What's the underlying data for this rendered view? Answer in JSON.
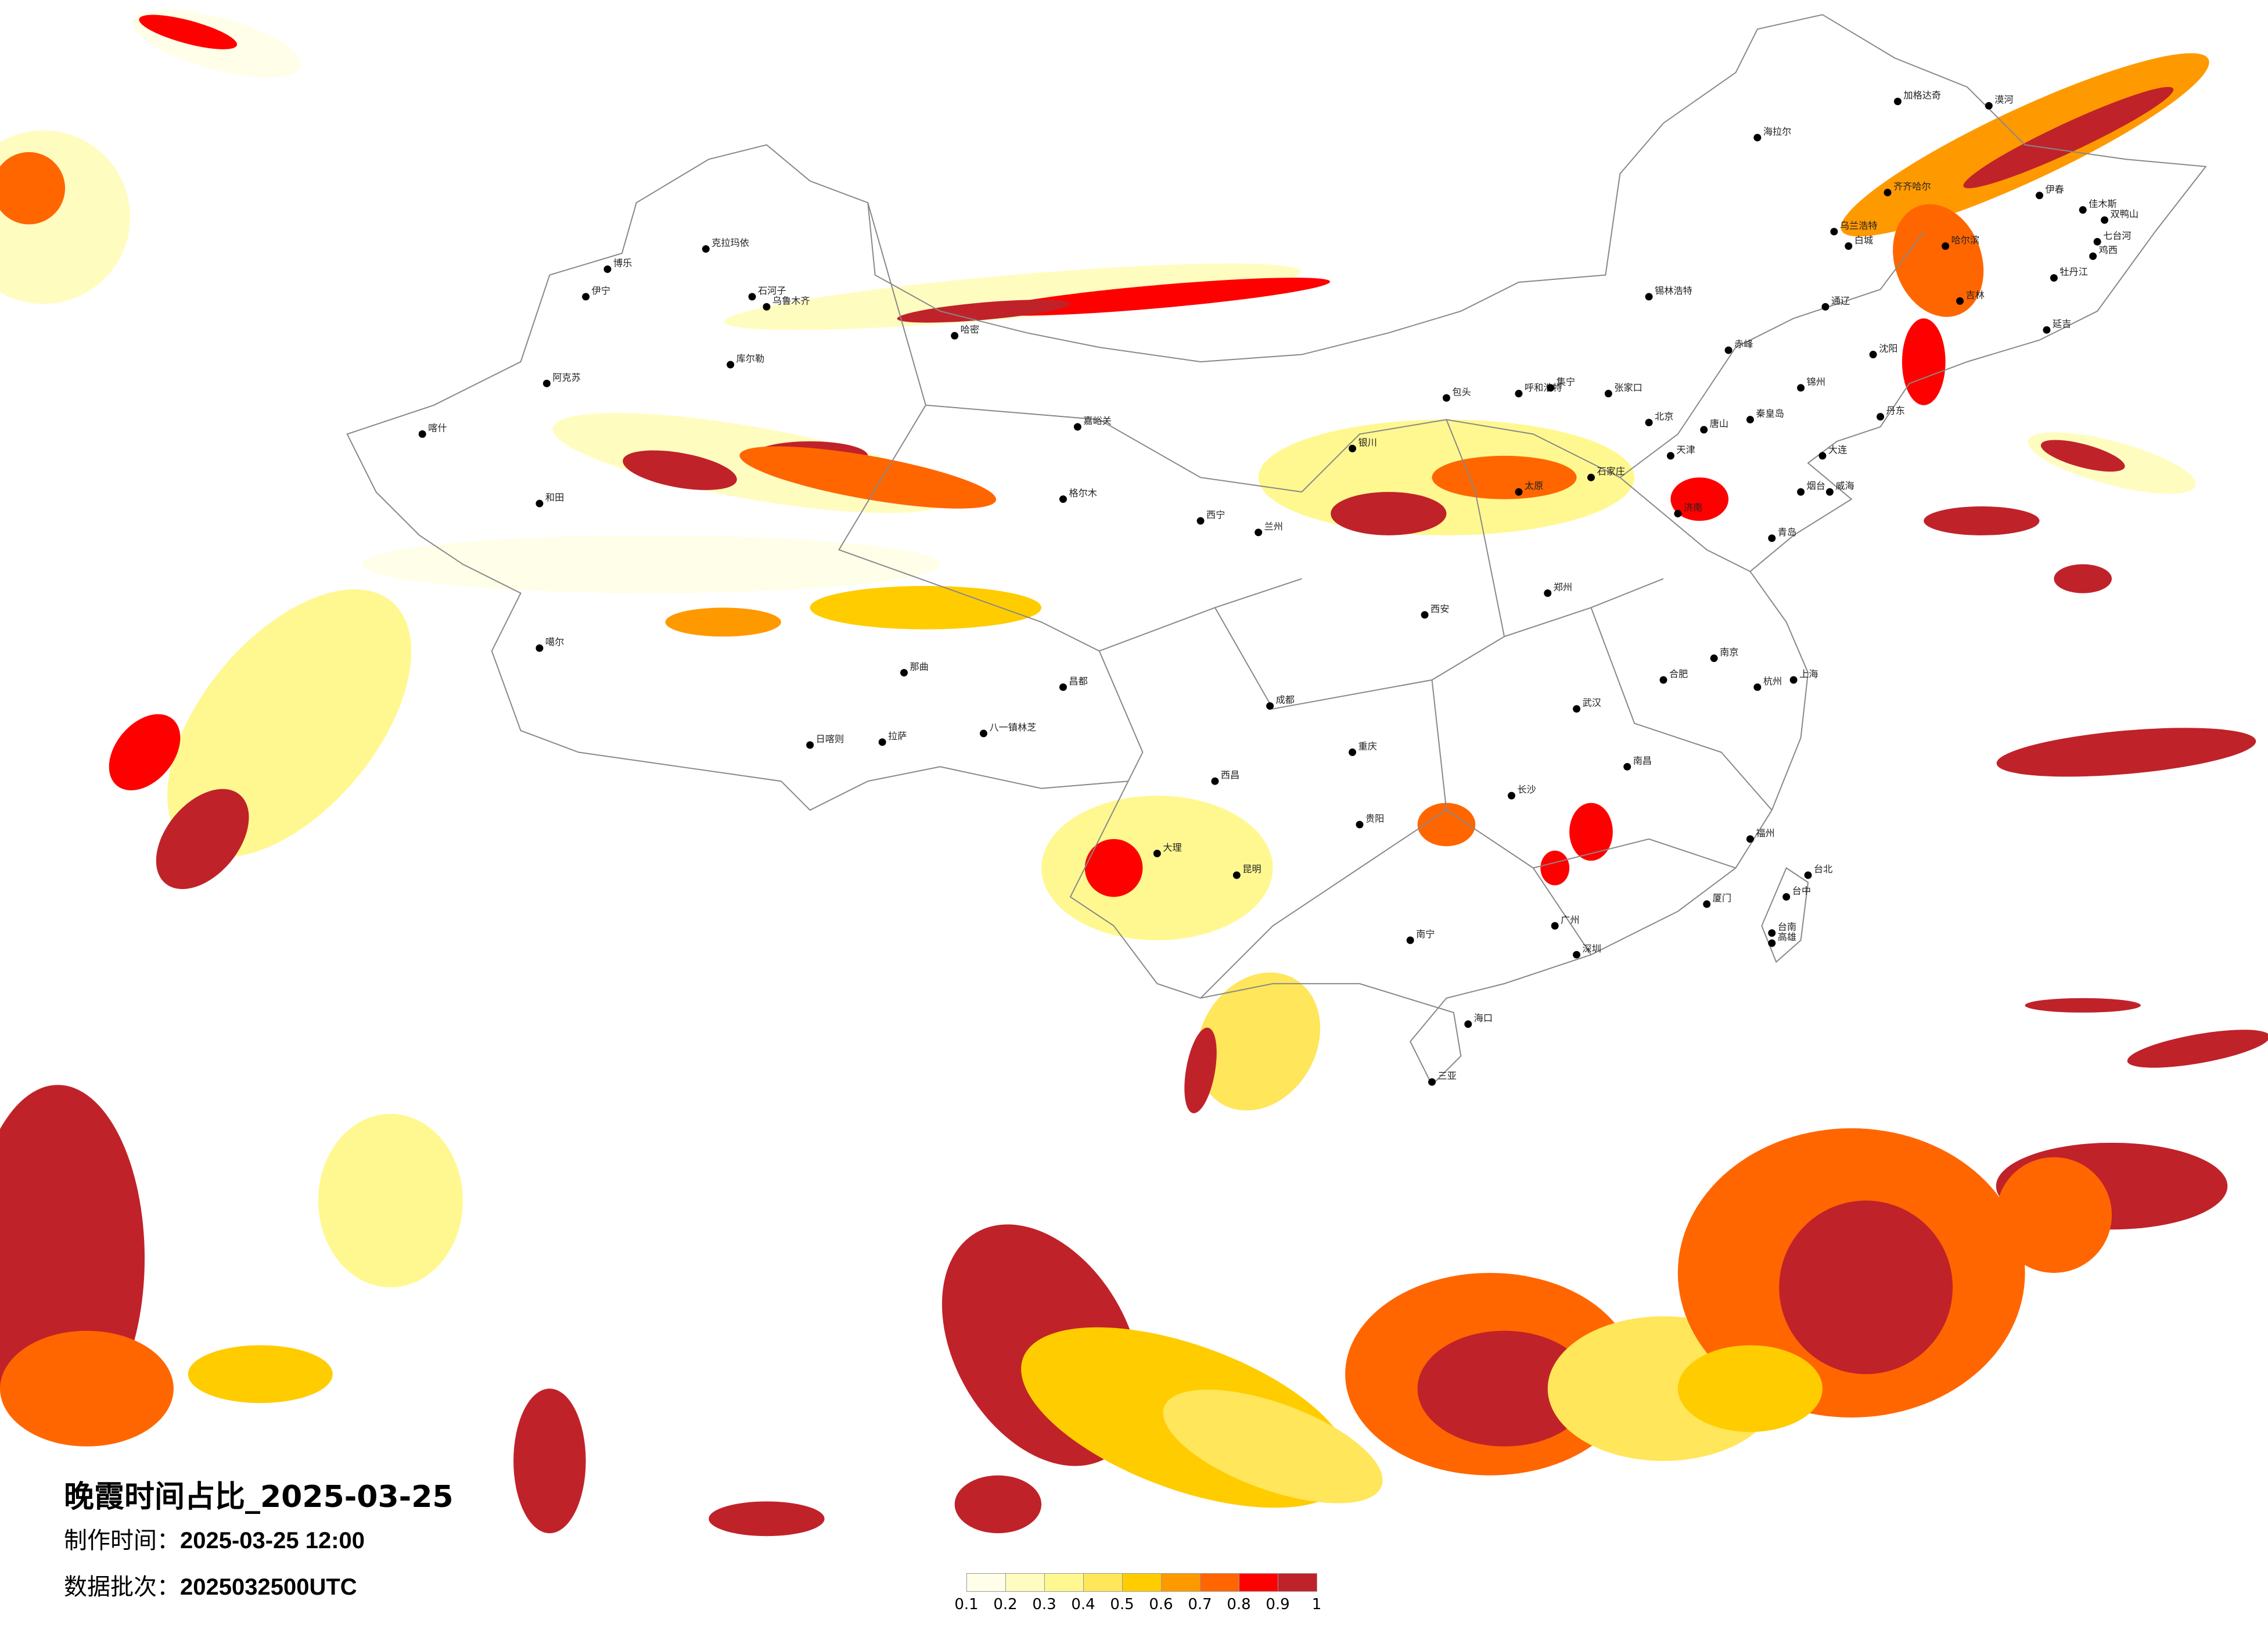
{
  "title": "晚霞时间占比_2025-03-25",
  "production_time": {
    "label": "制作时间：",
    "value": "2025-03-25 12:00"
  },
  "data_batch": {
    "label": "数据批次：",
    "value": "2025032500UTC"
  },
  "legend": {
    "ticks": [
      "0.1",
      "0.2",
      "0.3",
      "0.4",
      "0.5",
      "0.6",
      "0.7",
      "0.8",
      "0.9",
      "1"
    ],
    "colors": [
      "#fffee8",
      "#fffcc0",
      "#fff890",
      "#ffe65a",
      "#ffcc00",
      "#ff9900",
      "#ff6600",
      "#ff0000",
      "#c0222a"
    ]
  },
  "colors": {
    "border": "#888888",
    "city_dot": "#000000"
  },
  "cities": [
    "漠河",
    "加格达奇",
    "海拉尔",
    "齐齐哈尔",
    "乌兰浩特",
    "白城",
    "哈尔滨",
    "伊春",
    "佳木斯",
    "双鸭山",
    "七台河",
    "鸡西",
    "牡丹江",
    "吉林",
    "延吉",
    "通辽",
    "锡林浩特",
    "赤峰",
    "呼和浩特",
    "包头",
    "集宁",
    "张家口",
    "北京",
    "天津",
    "唐山",
    "秦皇岛",
    "沈阳",
    "锦州",
    "丹东",
    "大连",
    "烟台",
    "威海",
    "青岛",
    "济南",
    "石家庄",
    "太原",
    "银川",
    "兰州",
    "西宁",
    "乌鲁木齐",
    "克拉玛依",
    "博乐",
    "伊宁",
    "石河子",
    "阿克苏",
    "喀什",
    "和田",
    "库尔勒",
    "哈密",
    "嘉峪关",
    "格尔木",
    "拉萨",
    "日喀则",
    "八一镇林芝",
    "那曲",
    "昌都",
    "噶尔",
    "成都",
    "重庆",
    "贵阳",
    "昆明",
    "南宁",
    "广州",
    "深圳",
    "海口",
    "三亚",
    "长沙",
    "武汉",
    "南昌",
    "杭州",
    "上海",
    "南京",
    "合肥",
    "福州",
    "台北",
    "台中",
    "台南",
    "高雄",
    "郑州",
    "西安",
    "大理",
    "西昌",
    "厦门"
  ]
}
